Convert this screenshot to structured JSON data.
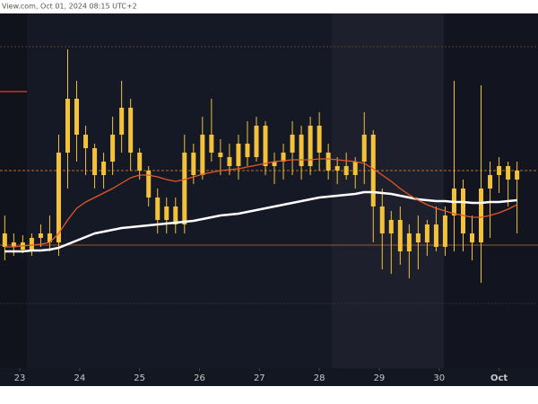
{
  "chart_data": {
    "type": "candlestick",
    "header": "View.com, Oct 01, 2024 08:15 UTC+2",
    "xlim": [
      22.67,
      31.65
    ],
    "xticks": [
      23,
      24,
      25,
      26,
      27,
      28,
      29,
      30,
      {
        "value": 31,
        "label": "Oct"
      }
    ],
    "ylim": [
      0,
      395
    ],
    "color": "#f3c13a",
    "x": [
      22.75,
      22.9,
      23.05,
      23.2,
      23.35,
      23.5,
      23.65,
      23.8,
      23.95,
      24.1,
      24.25,
      24.4,
      24.55,
      24.7,
      24.85,
      25.0,
      25.15,
      25.3,
      25.45,
      25.6,
      25.75,
      25.9,
      26.05,
      26.2,
      26.35,
      26.5,
      26.65,
      26.8,
      26.95,
      27.1,
      27.25,
      27.4,
      27.55,
      27.7,
      27.85,
      28.0,
      28.15,
      28.3,
      28.45,
      28.6,
      28.75,
      28.9,
      29.05,
      29.2,
      29.35,
      29.5,
      29.65,
      29.8,
      29.95,
      30.1,
      30.25,
      30.4,
      30.55,
      30.7,
      30.85,
      31.0,
      31.15,
      31.3
    ],
    "open": [
      150,
      135,
      140,
      132,
      145,
      150,
      140,
      240,
      300,
      260,
      245,
      215,
      230,
      260,
      290,
      240,
      220,
      190,
      165,
      180,
      160,
      240,
      215,
      260,
      240,
      235,
      225,
      250,
      235,
      270,
      225,
      230,
      240,
      260,
      225,
      270,
      240,
      220,
      225,
      215,
      230,
      260,
      180,
      150,
      165,
      130,
      150,
      140,
      160,
      135,
      170,
      200,
      150,
      140,
      200,
      215,
      225,
      210
    ],
    "high": [
      170,
      150,
      148,
      150,
      160,
      170,
      260,
      355,
      320,
      270,
      250,
      240,
      280,
      320,
      300,
      245,
      225,
      200,
      190,
      190,
      260,
      250,
      280,
      300,
      255,
      250,
      260,
      275,
      280,
      275,
      240,
      250,
      275,
      270,
      280,
      285,
      250,
      235,
      240,
      235,
      285,
      265,
      200,
      175,
      180,
      160,
      170,
      165,
      180,
      180,
      320,
      210,
      170,
      315,
      230,
      235,
      230,
      230
    ],
    "low": [
      120,
      125,
      128,
      125,
      135,
      130,
      125,
      200,
      230,
      215,
      200,
      200,
      215,
      240,
      220,
      210,
      180,
      150,
      150,
      150,
      150,
      205,
      210,
      230,
      215,
      215,
      210,
      225,
      230,
      215,
      205,
      210,
      215,
      210,
      215,
      220,
      210,
      205,
      210,
      200,
      205,
      140,
      110,
      105,
      115,
      100,
      110,
      125,
      130,
      125,
      130,
      130,
      120,
      95,
      145,
      195,
      180,
      150
    ],
    "close": [
      135,
      140,
      132,
      145,
      150,
      140,
      240,
      300,
      260,
      245,
      215,
      230,
      260,
      290,
      240,
      220,
      190,
      165,
      180,
      160,
      240,
      215,
      260,
      240,
      235,
      225,
      250,
      235,
      270,
      225,
      230,
      240,
      260,
      225,
      270,
      240,
      220,
      225,
      215,
      230,
      260,
      180,
      150,
      165,
      130,
      150,
      140,
      160,
      135,
      170,
      200,
      150,
      140,
      200,
      215,
      225,
      210,
      220
    ],
    "lines": [
      {
        "color": "#ffffff",
        "values": [
          130,
          130,
          130,
          131,
          131,
          132,
          134,
          138,
          142,
          146,
          150,
          152,
          154,
          156,
          157,
          158,
          159,
          160,
          161,
          162,
          163,
          164,
          166,
          168,
          170,
          171,
          172,
          174,
          176,
          178,
          180,
          182,
          184,
          186,
          188,
          190,
          191,
          192,
          193,
          194,
          196,
          196,
          195,
          194,
          192,
          190,
          188,
          187,
          186,
          186,
          185,
          185,
          184,
          184,
          185,
          185,
          186,
          187
        ]
      },
      {
        "color": "#e0582a",
        "values": [
          135,
          135,
          136,
          137,
          138,
          140,
          150,
          165,
          178,
          185,
          190,
          195,
          200,
          206,
          212,
          215,
          215,
          213,
          210,
          208,
          210,
          213,
          216,
          218,
          220,
          221,
          222,
          224,
          226,
          228,
          230,
          231,
          232,
          232,
          232,
          233,
          233,
          232,
          231,
          230,
          228,
          222,
          215,
          208,
          200,
          193,
          187,
          182,
          178,
          175,
          172,
          170,
          168,
          168,
          170,
          173,
          177,
          182
        ]
      }
    ]
  }
}
